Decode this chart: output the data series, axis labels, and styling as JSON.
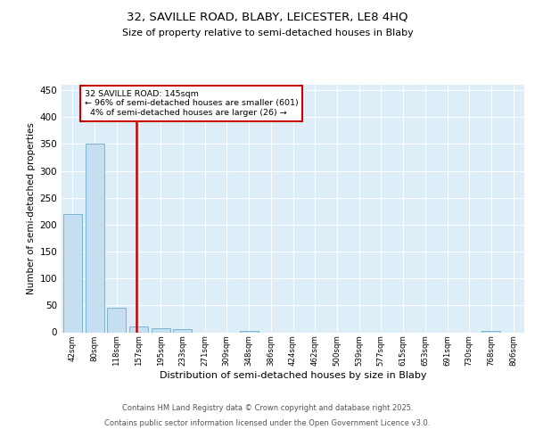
{
  "title1": "32, SAVILLE ROAD, BLABY, LEICESTER, LE8 4HQ",
  "title2": "Size of property relative to semi-detached houses in Blaby",
  "xlabel": "Distribution of semi-detached houses by size in Blaby",
  "ylabel": "Number of semi-detached properties",
  "bar_labels": [
    "42sqm",
    "80sqm",
    "118sqm",
    "157sqm",
    "195sqm",
    "233sqm",
    "271sqm",
    "309sqm",
    "348sqm",
    "386sqm",
    "424sqm",
    "462sqm",
    "500sqm",
    "539sqm",
    "577sqm",
    "615sqm",
    "653sqm",
    "691sqm",
    "730sqm",
    "768sqm",
    "806sqm"
  ],
  "bar_values": [
    220,
    350,
    45,
    10,
    8,
    6,
    0,
    0,
    3,
    0,
    0,
    0,
    0,
    0,
    0,
    0,
    0,
    0,
    0,
    3,
    0
  ],
  "bar_color": "#c5dff0",
  "bar_edge_color": "#7ab3d3",
  "background_color": "#ddeef8",
  "grid_color": "#ffffff",
  "property_label": "32 SAVILLE ROAD: 145sqm",
  "smaller_pct": 96,
  "smaller_count": 601,
  "larger_pct": 4,
  "larger_count": 26,
  "vline_color": "#cc0000",
  "annotation_box_color": "#cc0000",
  "ylim": [
    0,
    460
  ],
  "yticks": [
    0,
    50,
    100,
    150,
    200,
    250,
    300,
    350,
    400,
    450
  ],
  "vline_x": 2.9,
  "footer1": "Contains HM Land Registry data © Crown copyright and database right 2025.",
  "footer2": "Contains public sector information licensed under the Open Government Licence v3.0."
}
